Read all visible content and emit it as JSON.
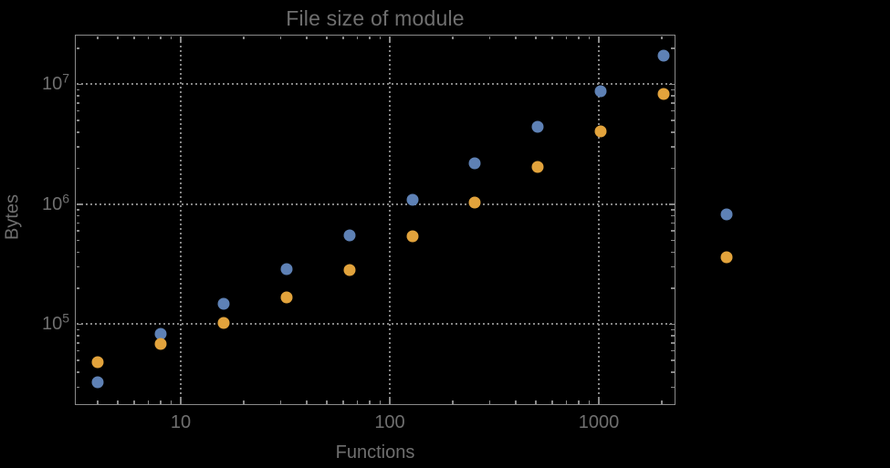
{
  "colors": {
    "background": "#000000",
    "frame": "#8a8a8a",
    "grid": "#858585",
    "text": "#6f6f6f",
    "series_blue": "#5E81B5",
    "series_orange": "#E2A33C"
  },
  "chart_data": {
    "type": "scatter",
    "title": "File size of module",
    "xlabel": "Functions",
    "ylabel": "Bytes",
    "xscale": "log",
    "yscale": "log",
    "xlog_range": [
      0.4934,
      3.3668
    ],
    "ylog_range": [
      4.327,
      7.414
    ],
    "grid": "dotted gridlines at decades only, all-side inward ticks, framed",
    "legend_position": "none",
    "x_major_ticks": [
      {
        "label": "10",
        "value": 10
      },
      {
        "label": "100",
        "value": 100
      },
      {
        "label": "1000",
        "value": 1000
      }
    ],
    "y_major_ticks": [
      {
        "base": "10",
        "exp": "5",
        "value": 100000
      },
      {
        "base": "10",
        "exp": "6",
        "value": 1000000
      },
      {
        "base": "10",
        "exp": "7",
        "value": 10000000
      }
    ],
    "series": [
      {
        "name": "series-blue",
        "color_key": "series_blue",
        "points": [
          [
            4,
            33000
          ],
          [
            8,
            83000
          ],
          [
            16,
            148000
          ],
          [
            32,
            288000
          ],
          [
            64,
            551000
          ],
          [
            128,
            1090000
          ],
          [
            256,
            2200000
          ],
          [
            512,
            4430000
          ],
          [
            1024,
            8770000
          ],
          [
            2048,
            17400000
          ],
          [
            4096,
            820000
          ]
        ]
      },
      {
        "name": "series-orange",
        "color_key": "series_orange",
        "points": [
          [
            4,
            48000
          ],
          [
            8,
            69000
          ],
          [
            16,
            103000
          ],
          [
            32,
            168000
          ],
          [
            64,
            283000
          ],
          [
            128,
            542000
          ],
          [
            256,
            1040000
          ],
          [
            512,
            2050000
          ],
          [
            1024,
            4060000
          ],
          [
            2048,
            8320000
          ],
          [
            4096,
            360000
          ]
        ]
      }
    ]
  }
}
